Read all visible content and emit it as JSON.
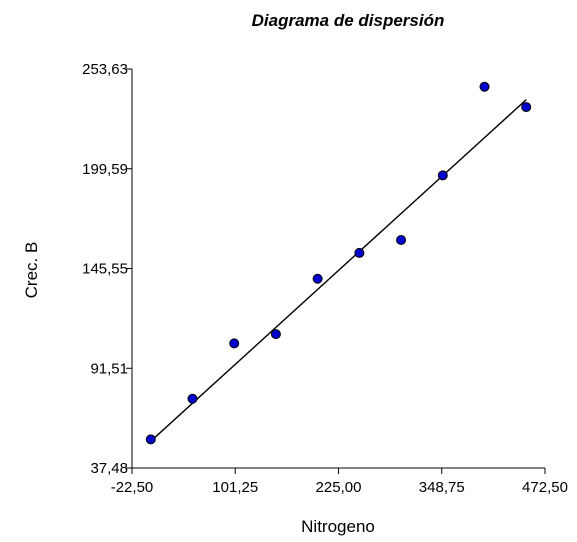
{
  "chart_data": {
    "type": "scatter",
    "title": "Diagrama de dispersión",
    "xlabel": "Nitrogeno",
    "ylabel": "Crec. B",
    "xlim": [
      -22.5,
      472.5
    ],
    "ylim": [
      37.48,
      253.63
    ],
    "x_ticks": [
      -22.5,
      101.25,
      225.0,
      348.75,
      472.5
    ],
    "x_tick_labels": [
      "-22,50",
      "101,25",
      "225,00",
      "348,75",
      "472,50"
    ],
    "y_ticks": [
      37.48,
      91.51,
      145.55,
      199.59,
      253.63
    ],
    "y_tick_labels": [
      "37,48",
      "91,51",
      "145,55",
      "199,59",
      "253,63"
    ],
    "grid": false,
    "series": [
      {
        "type": "scatter",
        "x": [
          0,
          50,
          100,
          150,
          200,
          250,
          300,
          350,
          400,
          450
        ],
        "y": [
          53,
          75,
          105,
          110,
          140,
          154,
          161,
          196,
          244,
          233
        ],
        "color": "#0000cc"
      }
    ],
    "fit_line": {
      "x": [
        0,
        450
      ],
      "y": [
        52,
        237
      ],
      "color": "#000000"
    }
  }
}
